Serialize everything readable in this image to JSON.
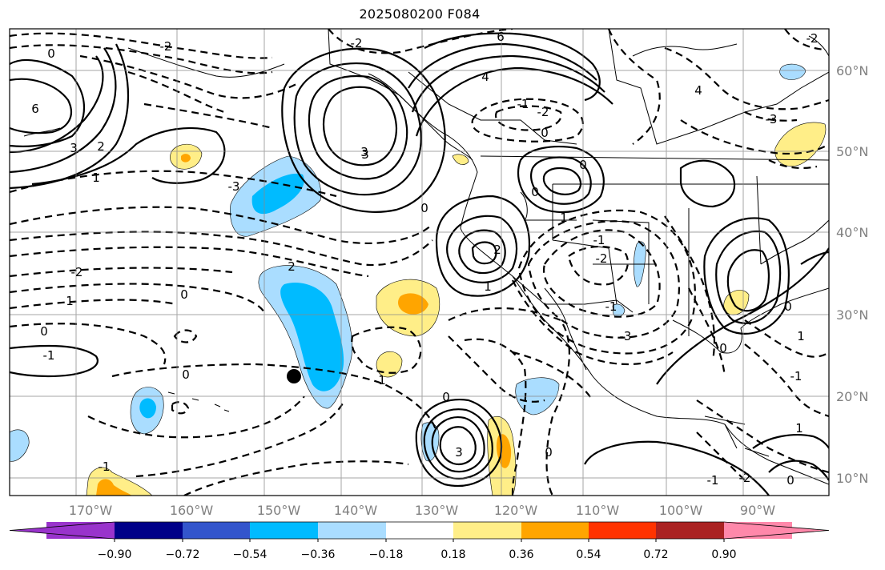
{
  "title": "2025080200 F084",
  "longitude_ticks": [
    "170°W",
    "160°W",
    "150°W",
    "140°W",
    "130°W",
    "120°W",
    "110°W",
    "100°W",
    "90°W"
  ],
  "latitude_ticks": [
    "60°N",
    "50°N",
    "40°N",
    "30°N",
    "20°N",
    "10°N"
  ],
  "colorbar": {
    "tick_labels": [
      "−0.90",
      "−0.72",
      "−0.54",
      "−0.36",
      "−0.18",
      "0.18",
      "0.36",
      "0.54",
      "0.72",
      "0.90"
    ],
    "colors": [
      "#9933cc",
      "#000088",
      "#3355cc",
      "#00bbff",
      "#aaddff",
      "#ffffff",
      "#ffee88",
      "#ffa500",
      "#ff3300",
      "#aa2222",
      "#ff88aa"
    ]
  },
  "contour_labels": [
    "-2",
    "-2",
    "6",
    "0",
    "4",
    "6",
    "3",
    "2",
    "1",
    "-2",
    "-1",
    "0",
    "-3",
    "4",
    "3",
    "-3",
    "0",
    "-2",
    "1",
    "3",
    "0",
    "1",
    "0",
    "1",
    "2",
    "-1",
    "-2",
    "-1",
    "0",
    "-1",
    "0",
    "2",
    "-3",
    "-2",
    "1",
    "0",
    "0",
    "-1",
    "1",
    "0",
    "3",
    "0",
    "0",
    "-1",
    "-2",
    "0",
    "1",
    "-1"
  ],
  "marker": {
    "name": "black-dot"
  }
}
